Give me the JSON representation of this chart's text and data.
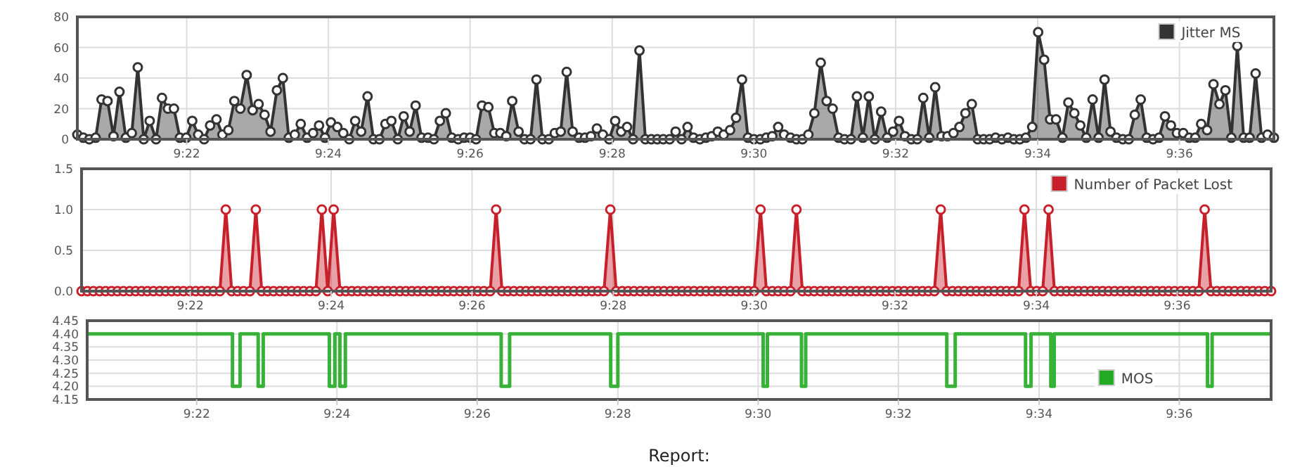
{
  "chart_data": [
    {
      "type": "area",
      "xlim": [
        9.341,
        9.6222
      ],
      "ylim": [
        0,
        80
      ],
      "yticks": [
        0,
        20,
        40,
        60,
        80
      ],
      "xticks": [
        {
          "value": 9.3667,
          "label": "9:22"
        },
        {
          "value": 9.4,
          "label": "9:24"
        },
        {
          "value": 9.4333,
          "label": "9:26"
        },
        {
          "value": 9.4667,
          "label": "9:28"
        },
        {
          "value": 9.5,
          "label": "9:30"
        },
        {
          "value": 9.5333,
          "label": "9:32"
        },
        {
          "value": 9.5667,
          "label": "9:34"
        },
        {
          "value": 9.6,
          "label": "9:36"
        }
      ],
      "grid": true,
      "legend": "top right",
      "marker": "circle",
      "x": [
        9.341,
        9.3424,
        9.3438,
        9.3453,
        9.3467,
        9.3481,
        9.3495,
        9.3509,
        9.3524,
        9.3538,
        9.3552,
        9.3566,
        9.358,
        9.3595,
        9.3609,
        9.3623,
        9.3637,
        9.3651,
        9.3666,
        9.368,
        9.3694,
        9.3708,
        9.3722,
        9.3737,
        9.3751,
        9.3765,
        9.3779,
        9.3793,
        9.3808,
        9.3822,
        9.3836,
        9.385,
        9.3864,
        9.3879,
        9.3893,
        9.3907,
        9.3921,
        9.3935,
        9.395,
        9.3964,
        9.3978,
        9.3992,
        9.4006,
        9.4021,
        9.4035,
        9.4049,
        9.4063,
        9.4077,
        9.4092,
        9.4106,
        9.412,
        9.4134,
        9.4148,
        9.4163,
        9.4177,
        9.4191,
        9.4205,
        9.4219,
        9.4234,
        9.4248,
        9.4262,
        9.4276,
        9.429,
        9.4305,
        9.4319,
        9.4333,
        9.4347,
        9.4361,
        9.4376,
        9.439,
        9.4404,
        9.4418,
        9.4432,
        9.4447,
        9.4461,
        9.4475,
        9.4489,
        9.4503,
        9.4518,
        9.4532,
        9.4546,
        9.456,
        9.4574,
        9.4589,
        9.4603,
        9.4617,
        9.4631,
        9.4645,
        9.466,
        9.4674,
        9.4688,
        9.4702,
        9.4716,
        9.4731,
        9.4745,
        9.4759,
        9.4773,
        9.4787,
        9.4802,
        9.4816,
        9.483,
        9.4844,
        9.4858,
        9.4873,
        9.4887,
        9.4901,
        9.4915,
        9.4929,
        9.4944,
        9.4958,
        9.4972,
        9.4986,
        9.5,
        9.5015,
        9.5029,
        9.5043,
        9.5057,
        9.5071,
        9.5086,
        9.51,
        9.5114,
        9.5128,
        9.5142,
        9.5157,
        9.5171,
        9.5185,
        9.5199,
        9.5213,
        9.5228,
        9.5242,
        9.5256,
        9.527,
        9.5284,
        9.5299,
        9.5313,
        9.5327,
        9.5341,
        9.5355,
        9.537,
        9.5384,
        9.5398,
        9.5412,
        9.5426,
        9.5441,
        9.5455,
        9.5469,
        9.5483,
        9.5497,
        9.5512,
        9.5526,
        9.554,
        9.5554,
        9.5568,
        9.5583,
        9.5597,
        9.5611,
        9.5625,
        9.5639,
        9.5654,
        9.5668,
        9.5682,
        9.5696,
        9.571,
        9.5725,
        9.5739,
        9.5753,
        9.5767,
        9.5781,
        9.5796,
        9.581,
        9.5824,
        9.5838,
        9.5852,
        9.5867,
        9.5881,
        9.5895,
        9.5909,
        9.5923,
        9.5938,
        9.5952,
        9.5966,
        9.598,
        9.5994,
        9.6009,
        9.6023,
        9.6037,
        9.6051,
        9.6065,
        9.608,
        9.6094,
        9.6108,
        9.6122,
        9.6136,
        9.6151,
        9.6165,
        9.6179,
        9.6193,
        9.6207,
        9.6222
      ],
      "series": [
        {
          "name": "Jitter MS",
          "color": "#333333",
          "values": [
            3,
            1,
            0,
            1,
            26,
            25,
            2,
            31,
            1,
            4,
            47,
            0,
            12,
            0,
            27,
            20,
            20,
            1,
            1,
            12,
            3,
            0,
            9,
            13,
            3,
            6,
            25,
            20,
            42,
            19,
            23,
            16,
            5,
            32,
            40,
            1,
            3,
            10,
            1,
            4,
            9,
            1,
            11,
            8,
            4,
            0,
            12,
            5,
            28,
            0,
            0,
            10,
            12,
            0,
            15,
            5,
            22,
            1,
            1,
            0,
            12,
            17,
            1,
            0,
            1,
            1,
            0,
            22,
            21,
            4,
            4,
            2,
            25,
            5,
            0,
            0,
            39,
            0,
            0,
            4,
            5,
            44,
            5,
            1,
            1,
            2,
            7,
            3,
            0,
            12,
            5,
            8,
            0,
            58,
            0,
            0,
            0,
            0,
            0,
            5,
            0,
            8,
            1,
            0,
            1,
            2,
            5,
            3,
            6,
            14,
            39,
            1,
            0,
            0,
            1,
            2,
            8,
            3,
            1,
            0,
            0,
            3,
            17,
            50,
            25,
            20,
            1,
            0,
            0,
            28,
            1,
            28,
            0,
            18,
            1,
            5,
            12,
            2,
            0,
            0,
            27,
            1,
            34,
            2,
            2,
            4,
            8,
            17,
            23,
            0,
            0,
            0,
            1,
            0,
            1,
            0,
            0,
            1,
            8,
            70,
            52,
            13,
            13,
            1,
            24,
            17,
            9,
            1,
            26,
            1,
            39,
            5,
            1,
            0,
            0,
            16,
            26,
            1,
            0,
            1,
            15,
            9,
            4,
            4,
            1,
            1,
            10,
            6,
            36,
            23,
            32,
            1,
            61,
            1,
            1,
            43,
            1,
            3,
            1
          ]
        }
      ]
    },
    {
      "type": "area",
      "xlim": [
        9.341,
        9.6222
      ],
      "ylim": [
        0,
        1.5
      ],
      "yticks": [
        {
          "value": 0,
          "label": "0.0"
        },
        {
          "value": 0.5,
          "label": "0.5"
        },
        {
          "value": 1,
          "label": "1.0"
        },
        {
          "value": 1.5,
          "label": "1.5"
        }
      ],
      "xticks": [
        {
          "value": 9.3667,
          "label": "9:22"
        },
        {
          "value": 9.4,
          "label": "9:24"
        },
        {
          "value": 9.4333,
          "label": "9:26"
        },
        {
          "value": 9.4667,
          "label": "9:28"
        },
        {
          "value": 9.5,
          "label": "9:30"
        },
        {
          "value": 9.5333,
          "label": "9:32"
        },
        {
          "value": 9.5667,
          "label": "9:34"
        },
        {
          "value": 9.6,
          "label": "9:36"
        }
      ],
      "grid": true,
      "legend": "top right",
      "marker": "circle",
      "x": [
        9.341,
        9.3424,
        9.3438,
        9.3453,
        9.3467,
        9.3481,
        9.3495,
        9.3509,
        9.3524,
        9.3538,
        9.3552,
        9.3566,
        9.358,
        9.3595,
        9.3609,
        9.3623,
        9.3637,
        9.3651,
        9.3666,
        9.368,
        9.3694,
        9.3708,
        9.3722,
        9.3737,
        9.3751,
        9.3765,
        9.3779,
        9.3793,
        9.3808,
        9.3822,
        9.3836,
        9.385,
        9.3864,
        9.3879,
        9.3893,
        9.3907,
        9.3921,
        9.3935,
        9.395,
        9.3964,
        9.3978,
        9.3992,
        9.4006,
        9.4021,
        9.4035,
        9.4049,
        9.4063,
        9.4077,
        9.4092,
        9.4106,
        9.412,
        9.4134,
        9.4148,
        9.4163,
        9.4177,
        9.4191,
        9.4205,
        9.4219,
        9.4234,
        9.4248,
        9.4262,
        9.4276,
        9.429,
        9.4305,
        9.4319,
        9.4333,
        9.4347,
        9.4361,
        9.4376,
        9.439,
        9.4404,
        9.4418,
        9.4432,
        9.4447,
        9.4461,
        9.4475,
        9.4489,
        9.4503,
        9.4518,
        9.4532,
        9.4546,
        9.456,
        9.4574,
        9.4589,
        9.4603,
        9.4617,
        9.4631,
        9.4645,
        9.466,
        9.4674,
        9.4688,
        9.4702,
        9.4716,
        9.4731,
        9.4745,
        9.4759,
        9.4773,
        9.4787,
        9.4802,
        9.4816,
        9.483,
        9.4844,
        9.4858,
        9.4873,
        9.4887,
        9.4901,
        9.4915,
        9.4929,
        9.4944,
        9.4958,
        9.4972,
        9.4986,
        9.5,
        9.5015,
        9.5029,
        9.5043,
        9.5057,
        9.5071,
        9.5086,
        9.51,
        9.5114,
        9.5128,
        9.5142,
        9.5157,
        9.5171,
        9.5185,
        9.5199,
        9.5213,
        9.5228,
        9.5242,
        9.5256,
        9.527,
        9.5284,
        9.5299,
        9.5313,
        9.5327,
        9.5341,
        9.5355,
        9.537,
        9.5384,
        9.5398,
        9.5412,
        9.5426,
        9.5441,
        9.5455,
        9.5469,
        9.5483,
        9.5497,
        9.5512,
        9.5526,
        9.554,
        9.5554,
        9.5568,
        9.5583,
        9.5597,
        9.5611,
        9.5625,
        9.5639,
        9.5654,
        9.5668,
        9.5682,
        9.5696,
        9.571,
        9.5725,
        9.5739,
        9.5753,
        9.5767,
        9.5781,
        9.5796,
        9.581,
        9.5824,
        9.5838,
        9.5852,
        9.5867,
        9.5881,
        9.5895,
        9.5909,
        9.5923,
        9.5938,
        9.5952,
        9.5966,
        9.598,
        9.5994,
        9.6009,
        9.6023,
        9.6037,
        9.6051,
        9.6065,
        9.608,
        9.6094,
        9.6108,
        9.6122,
        9.6136,
        9.6151,
        9.6165,
        9.6179,
        9.6193,
        9.6207,
        9.6222
      ],
      "series": [
        {
          "name": "Number of Packet Lost",
          "color": "#c8202a",
          "values": [
            0,
            0,
            0,
            0,
            0,
            0,
            0,
            0,
            0,
            0,
            0,
            0,
            0,
            0,
            0,
            0,
            0,
            0,
            0,
            0,
            0,
            0,
            0,
            0,
            1,
            0,
            0,
            0,
            0,
            1,
            0,
            0,
            0,
            0,
            0,
            0,
            0,
            0,
            0,
            0,
            1,
            0,
            1,
            0,
            0,
            0,
            0,
            0,
            0,
            0,
            0,
            0,
            0,
            0,
            0,
            0,
            0,
            0,
            0,
            0,
            0,
            0,
            0,
            0,
            0,
            0,
            0,
            0,
            0,
            1,
            0,
            0,
            0,
            0,
            0,
            0,
            0,
            0,
            0,
            0,
            0,
            0,
            0,
            0,
            0,
            0,
            0,
            0,
            1,
            0,
            0,
            0,
            0,
            0,
            0,
            0,
            0,
            0,
            0,
            0,
            0,
            0,
            0,
            0,
            0,
            0,
            0,
            0,
            0,
            0,
            0,
            0,
            0,
            1,
            0,
            0,
            0,
            0,
            0,
            1,
            0,
            0,
            0,
            0,
            0,
            0,
            0,
            0,
            0,
            0,
            0,
            0,
            0,
            0,
            0,
            0,
            0,
            0,
            0,
            0,
            0,
            0,
            0,
            1,
            0,
            0,
            0,
            0,
            0,
            0,
            0,
            0,
            0,
            0,
            0,
            0,
            0,
            1,
            0,
            0,
            0,
            1,
            0,
            0,
            0,
            0,
            0,
            0,
            0,
            0,
            0,
            0,
            0,
            0,
            0,
            0,
            0,
            0,
            0,
            0,
            0,
            0,
            0,
            0,
            0,
            0,
            0,
            1,
            0,
            0,
            0,
            0,
            0,
            0,
            0,
            0,
            0,
            0,
            0
          ]
        }
      ]
    },
    {
      "type": "step",
      "xlim": [
        9.3407,
        9.6218
      ],
      "ylim": [
        4.15,
        4.45
      ],
      "yticks": [
        {
          "value": 4.15,
          "label": "4.15"
        },
        {
          "value": 4.2,
          "label": "4.20"
        },
        {
          "value": 4.25,
          "label": "4.25"
        },
        {
          "value": 4.3,
          "label": "4.30"
        },
        {
          "value": 4.35,
          "label": "4.35"
        },
        {
          "value": 4.4,
          "label": "4.40"
        },
        {
          "value": 4.45,
          "label": "4.45"
        }
      ],
      "xticks": [
        {
          "value": 9.3667,
          "label": "9:22"
        },
        {
          "value": 9.4,
          "label": "9:24"
        },
        {
          "value": 9.4333,
          "label": "9:26"
        },
        {
          "value": 9.4667,
          "label": "9:28"
        },
        {
          "value": 9.5,
          "label": "9:30"
        },
        {
          "value": 9.5333,
          "label": "9:32"
        },
        {
          "value": 9.5667,
          "label": "9:34"
        },
        {
          "value": 9.6,
          "label": "9:36"
        }
      ],
      "grid": true,
      "legend": "bottom right",
      "annotations": [
        "Report:"
      ],
      "x": [
        9.3407,
        9.3752,
        9.377,
        9.3813,
        9.3825,
        9.3982,
        9.3995,
        9.4007,
        9.402,
        9.439,
        9.441,
        9.465,
        9.4667,
        9.5012,
        9.5022,
        9.5103,
        9.5113,
        9.5448,
        9.5468,
        9.5635,
        9.5648,
        9.5695,
        9.5703,
        9.6067,
        9.6078,
        9.6218
      ],
      "series": [
        {
          "name": "MOS",
          "color": "#22aa22",
          "values": [
            4.4,
            4.2,
            4.4,
            4.2,
            4.4,
            4.2,
            4.4,
            4.2,
            4.4,
            4.2,
            4.4,
            4.2,
            4.4,
            4.2,
            4.4,
            4.2,
            4.4,
            4.2,
            4.4,
            4.2,
            4.4,
            4.2,
            4.4,
            4.2,
            4.4,
            4.4
          ]
        }
      ]
    }
  ]
}
